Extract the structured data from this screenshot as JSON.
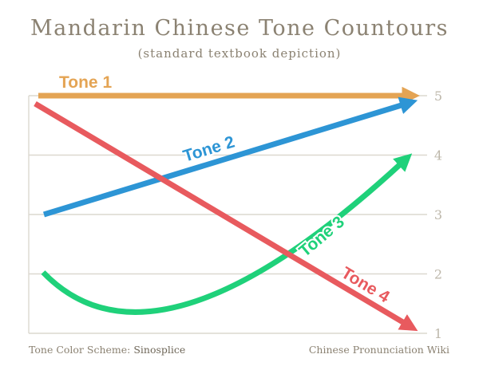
{
  "title": "Mandarin Chinese Tone Countours",
  "subtitle": "(standard textbook depiction)",
  "footer": {
    "scheme_prefix": "Tone Color Scheme: ",
    "scheme_name": "Sinosplice",
    "credit": "Chinese Pronunciation Wiki"
  },
  "colors": {
    "tone1": "#e4a454",
    "tone2": "#2d95d5",
    "tone3": "#1fd17a",
    "tone4": "#e85a5e",
    "grid": "#dcd8cf",
    "title": "#8b8272",
    "tick": "#bdb7aa"
  },
  "chart_data": {
    "type": "line",
    "ylim": [
      1,
      5
    ],
    "y_ticks": [
      "1",
      "2",
      "3",
      "4",
      "5"
    ],
    "grid": true,
    "series": [
      {
        "name": "Tone 1",
        "contour": "55",
        "start": 5,
        "end": 5
      },
      {
        "name": "Tone 2",
        "contour": "35",
        "start": 3,
        "end": 5
      },
      {
        "name": "Tone 3",
        "contour": "214",
        "start": 2,
        "low": 1,
        "end": 4
      },
      {
        "name": "Tone 4",
        "contour": "51",
        "start": 5,
        "end": 1
      }
    ]
  }
}
